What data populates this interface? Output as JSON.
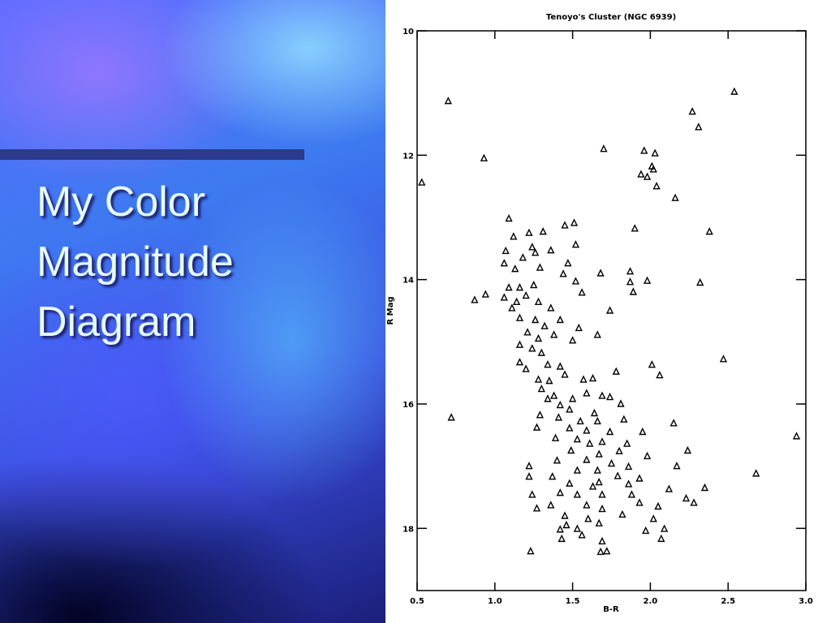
{
  "slide": {
    "title": "My Color Magnitude Diagram"
  },
  "chart_data": {
    "type": "scatter",
    "title": "Tenoyo's Cluster (NGC 6939)",
    "xlabel": "B-R",
    "ylabel": "R Mag",
    "color": "#000000",
    "y_inverted": true,
    "xlim": [
      0.5,
      3.0
    ],
    "ylim": [
      10,
      19
    ],
    "xticks": [
      0.5,
      {
        "value": 1,
        "label": "1.0"
      },
      1.5,
      {
        "value": 2,
        "label": "2.0"
      },
      2.5,
      {
        "value": 3,
        "label": "3.0"
      }
    ],
    "yticks": [
      10,
      12,
      14,
      16,
      18
    ],
    "x": [
      0.7,
      2.54,
      2.27,
      2.31,
      1.7,
      1.96,
      2.03,
      0.93,
      2.01,
      2.02,
      1.94,
      1.98,
      2.04,
      0.53,
      2.16,
      1.09,
      1.51,
      1.45,
      1.9,
      2.38,
      1.22,
      1.31,
      1.12,
      1.52,
      1.36,
      1.07,
      1.24,
      1.26,
      1.18,
      1.06,
      1.47,
      1.13,
      1.68,
      1.87,
      1.44,
      1.29,
      1.52,
      1.87,
      1.98,
      2.32,
      1.09,
      1.16,
      1.25,
      0.94,
      0.87,
      1.89,
      1.56,
      1.06,
      1.14,
      1.2,
      1.28,
      1.11,
      1.74,
      1.36,
      1.16,
      1.26,
      1.42,
      1.32,
      1.54,
      1.21,
      1.66,
      1.28,
      1.38,
      1.5,
      1.16,
      1.24,
      1.3,
      2.47,
      1.16,
      2.01,
      1.2,
      1.34,
      1.42,
      1.45,
      1.78,
      2.06,
      1.28,
      1.35,
      1.57,
      1.63,
      1.3,
      1.38,
      1.59,
      1.34,
      1.5,
      1.69,
      1.74,
      1.42,
      1.48,
      1.81,
      1.64,
      1.29,
      1.41,
      0.72,
      1.55,
      1.66,
      1.83,
      1.27,
      1.48,
      2.15,
      1.59,
      1.74,
      1.95,
      1.39,
      1.53,
      1.69,
      2.94,
      1.61,
      1.85,
      1.8,
      1.49,
      1.67,
      2.24,
      1.4,
      1.59,
      1.98,
      1.75,
      1.22,
      2.17,
      1.86,
      1.53,
      1.66,
      1.79,
      2.68,
      1.22,
      1.37,
      1.93,
      1.48,
      1.67,
      1.86,
      1.63,
      2.35,
      2.12,
      1.24,
      1.42,
      1.53,
      1.69,
      1.88,
      2.23,
      2.28,
      1.36,
      1.59,
      1.93,
      2.05,
      1.27,
      1.69,
      1.45,
      1.82,
      1.6,
      2.02,
      1.42,
      1.53,
      1.67,
      2.09,
      1.97,
      1.43,
      1.56,
      1.69,
      2.07,
      1.23,
      1.68,
      1.72,
      1.46
    ],
    "y": [
      11.13,
      10.98,
      11.3,
      11.55,
      11.9,
      11.93,
      11.97,
      12.05,
      12.18,
      12.23,
      12.31,
      12.35,
      12.5,
      12.44,
      12.69,
      13.02,
      13.09,
      13.13,
      13.18,
      13.23,
      13.25,
      13.23,
      13.31,
      13.44,
      13.53,
      13.54,
      13.48,
      13.57,
      13.65,
      13.74,
      13.74,
      13.83,
      13.9,
      13.87,
      13.91,
      13.81,
      14.03,
      14.04,
      14.02,
      14.05,
      14.13,
      14.13,
      14.09,
      14.24,
      14.33,
      14.2,
      14.21,
      14.29,
      14.36,
      14.26,
      14.36,
      14.46,
      14.5,
      14.46,
      14.62,
      14.65,
      14.65,
      14.75,
      14.78,
      14.85,
      14.89,
      14.95,
      14.89,
      14.98,
      15.05,
      15.11,
      15.18,
      15.28,
      15.33,
      15.37,
      15.44,
      15.37,
      15.4,
      15.53,
      15.48,
      15.54,
      15.61,
      15.63,
      15.61,
      15.59,
      15.76,
      15.87,
      15.83,
      15.92,
      15.92,
      15.87,
      15.89,
      16.02,
      16.09,
      16.0,
      16.15,
      16.18,
      16.22,
      16.22,
      16.28,
      16.28,
      16.25,
      16.38,
      16.39,
      16.31,
      16.43,
      16.45,
      16.45,
      16.55,
      16.57,
      16.61,
      16.52,
      16.64,
      16.64,
      16.76,
      16.75,
      16.81,
      16.75,
      16.91,
      16.9,
      16.84,
      16.96,
      17.0,
      17.0,
      17.01,
      17.07,
      17.07,
      17.16,
      17.12,
      17.17,
      17.17,
      17.2,
      17.28,
      17.26,
      17.29,
      17.33,
      17.35,
      17.37,
      17.46,
      17.43,
      17.46,
      17.46,
      17.46,
      17.52,
      17.59,
      17.63,
      17.63,
      17.59,
      17.65,
      17.68,
      17.69,
      17.8,
      17.78,
      17.85,
      17.85,
      18.02,
      18.01,
      17.92,
      18.01,
      18.04,
      18.17,
      18.11,
      18.21,
      18.17,
      18.37,
      18.38,
      18.37,
      17.95
    ]
  }
}
